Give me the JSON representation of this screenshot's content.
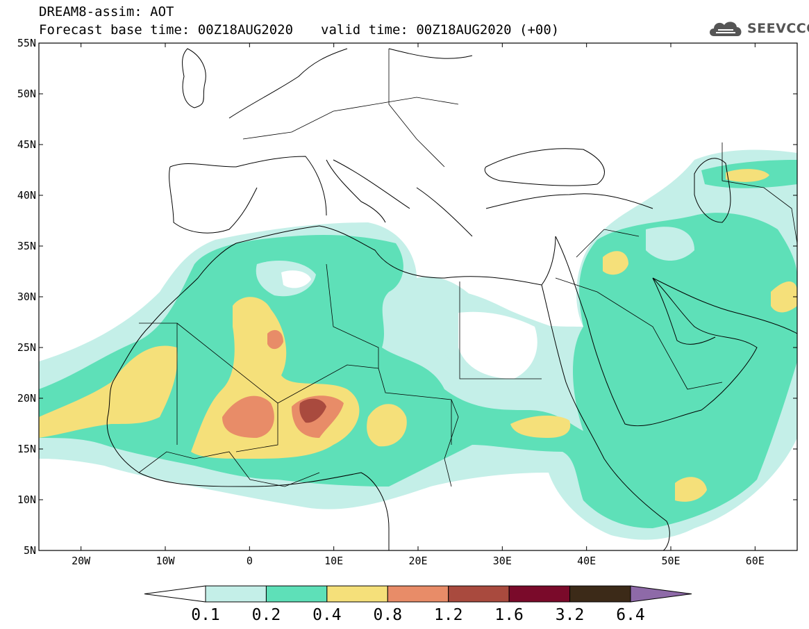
{
  "title": {
    "line1": "DREAM8-assim: AOT",
    "base_time": "Forecast base time: 00Z18AUG2020",
    "valid_time": "valid time: 00Z18AUG2020 (+00)"
  },
  "logo": {
    "text": "SEEVCCC",
    "icon": "cloud-icon"
  },
  "map": {
    "lon_range": [
      -25,
      65
    ],
    "lat_range": [
      5,
      55
    ],
    "lat_ticks": [
      "5N",
      "10N",
      "15N",
      "20N",
      "25N",
      "30N",
      "35N",
      "40N",
      "45N",
      "50N",
      "55N"
    ],
    "lon_ticks": [
      "20W",
      "10W",
      "0",
      "10E",
      "20E",
      "30E",
      "40E",
      "50E",
      "60E"
    ]
  },
  "colorbar": {
    "levels": [
      "0.1",
      "0.2",
      "0.4",
      "0.8",
      "1.2",
      "1.6",
      "3.2",
      "6.4"
    ],
    "colors": [
      "#ffffff",
      "#c4efe8",
      "#5ee0b8",
      "#f5e07a",
      "#e88c68",
      "#a94a3e",
      "#7a0a2a",
      "#3c2a18",
      "#8e6aa8"
    ]
  }
}
